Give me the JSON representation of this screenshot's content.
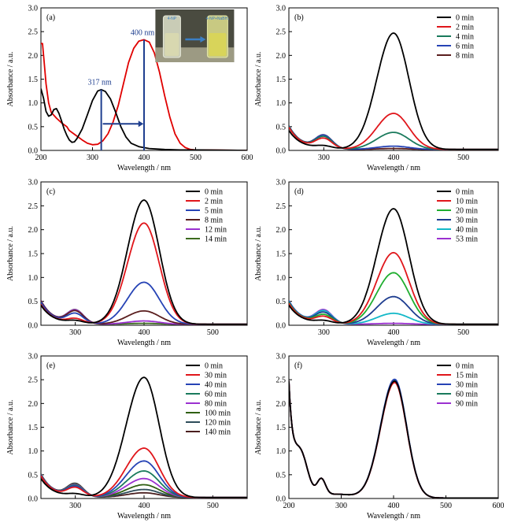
{
  "chart_data": [
    {
      "id": "a",
      "type": "line",
      "panel_label": "(a)",
      "xlabel": "Wavelength / nm",
      "ylabel": "Absorbance / a.u.",
      "xlim": [
        200,
        600
      ],
      "ylim": [
        0,
        3.0
      ],
      "xticks": [
        "200",
        "300",
        "400",
        "500",
        "600"
      ],
      "yticks": [
        "0.0",
        "0.5",
        "1.0",
        "1.5",
        "2.0",
        "2.5",
        "3.0"
      ],
      "series": [
        {
          "color": "#000000",
          "points": [
            [
              200,
              1.3
            ],
            [
              205,
              1.1
            ],
            [
              210,
              0.82
            ],
            [
              215,
              0.72
            ],
            [
              220,
              0.75
            ],
            [
              225,
              0.86
            ],
            [
              230,
              0.88
            ],
            [
              235,
              0.78
            ],
            [
              240,
              0.62
            ],
            [
              245,
              0.45
            ],
            [
              250,
              0.32
            ],
            [
              255,
              0.22
            ],
            [
              260,
              0.17
            ],
            [
              265,
              0.18
            ],
            [
              270,
              0.25
            ],
            [
              280,
              0.45
            ],
            [
              290,
              0.75
            ],
            [
              300,
              1.05
            ],
            [
              310,
              1.25
            ],
            [
              317,
              1.28
            ],
            [
              325,
              1.24
            ],
            [
              335,
              1.08
            ],
            [
              345,
              0.8
            ],
            [
              355,
              0.5
            ],
            [
              365,
              0.28
            ],
            [
              375,
              0.15
            ],
            [
              390,
              0.08
            ],
            [
              410,
              0.04
            ],
            [
              440,
              0.02
            ],
            [
              470,
              0.01
            ],
            [
              500,
              0.01
            ],
            [
              600,
              0.0
            ]
          ]
        },
        {
          "color": "#e00000",
          "points": [
            [
              200,
              2.25
            ],
            [
              203,
              2.25
            ],
            [
              206,
              1.9
            ],
            [
              210,
              1.4
            ],
            [
              215,
              1.0
            ],
            [
              220,
              0.8
            ],
            [
              230,
              0.68
            ],
            [
              240,
              0.58
            ],
            [
              250,
              0.5
            ],
            [
              255,
              0.42
            ],
            [
              260,
              0.38
            ],
            [
              270,
              0.3
            ],
            [
              280,
              0.22
            ],
            [
              290,
              0.15
            ],
            [
              300,
              0.12
            ],
            [
              310,
              0.13
            ],
            [
              320,
              0.2
            ],
            [
              330,
              0.35
            ],
            [
              340,
              0.6
            ],
            [
              350,
              0.95
            ],
            [
              360,
              1.4
            ],
            [
              370,
              1.85
            ],
            [
              380,
              2.15
            ],
            [
              390,
              2.3
            ],
            [
              400,
              2.33
            ],
            [
              410,
              2.28
            ],
            [
              420,
              2.05
            ],
            [
              430,
              1.65
            ],
            [
              440,
              1.15
            ],
            [
              450,
              0.7
            ],
            [
              460,
              0.35
            ],
            [
              470,
              0.15
            ],
            [
              480,
              0.06
            ],
            [
              490,
              0.02
            ],
            [
              500,
              0.01
            ],
            [
              600,
              0.0
            ]
          ]
        }
      ],
      "annotations": [
        {
          "text": "317 nm",
          "x": 317,
          "y": 1.38
        },
        {
          "text": "400 nm",
          "x": 400,
          "y": 2.43
        }
      ],
      "inset_labels": [
        "4-NP",
        "4-NP+NaBH₄"
      ]
    },
    {
      "id": "b",
      "type": "line",
      "panel_label": "(b)",
      "xlabel": "Wavelength / nm",
      "ylabel": "Absorbance / a.u.",
      "xlim": [
        250,
        550
      ],
      "ylim": [
        0,
        3.0
      ],
      "xticks": [
        "300",
        "400",
        "500"
      ],
      "yticks": [
        "0.0",
        "0.5",
        "1.0",
        "1.5",
        "2.0",
        "2.5",
        "3.0"
      ],
      "series": [
        {
          "name": "0 min",
          "color": "#000000",
          "amp": 2.45
        },
        {
          "name": "2 min",
          "color": "#e0161b",
          "amp": 0.76
        },
        {
          "name": "4 min",
          "color": "#1a7a5c",
          "amp": 0.36
        },
        {
          "name": "6 min",
          "color": "#2643b5",
          "amp": 0.07
        },
        {
          "name": "8 min",
          "color": "#5a1e1e",
          "amp": 0.02
        }
      ]
    },
    {
      "id": "c",
      "type": "line",
      "panel_label": "(c)",
      "xlabel": "Wavelength / nm",
      "ylabel": "Absorbance / a.u.",
      "xlim": [
        250,
        550
      ],
      "ylim": [
        0,
        3.0
      ],
      "xticks": [
        "300",
        "400",
        "500"
      ],
      "yticks": [
        "0.0",
        "0.5",
        "1.0",
        "1.5",
        "2.0",
        "2.5",
        "3.0"
      ],
      "series": [
        {
          "name": "0 min",
          "color": "#000000",
          "amp": 2.6
        },
        {
          "name": "2 min",
          "color": "#e0161b",
          "amp": 2.12
        },
        {
          "name": "5 min",
          "color": "#2643b5",
          "amp": 0.88
        },
        {
          "name": "8 min",
          "color": "#5a1e1e",
          "amp": 0.28
        },
        {
          "name": "12 min",
          "color": "#9b30d0",
          "amp": 0.07
        },
        {
          "name": "14 min",
          "color": "#3c6b1e",
          "amp": 0.02
        }
      ]
    },
    {
      "id": "d",
      "type": "line",
      "panel_label": "(d)",
      "xlabel": "Wavelength / nm",
      "ylabel": "Absorbance / a.u.",
      "xlim": [
        250,
        550
      ],
      "ylim": [
        0,
        3.0
      ],
      "xticks": [
        "300",
        "400",
        "500"
      ],
      "yticks": [
        "0.0",
        "0.5",
        "1.0",
        "1.5",
        "2.0",
        "2.5",
        "3.0"
      ],
      "series": [
        {
          "name": "0 min",
          "color": "#000000",
          "amp": 2.42
        },
        {
          "name": "10 min",
          "color": "#e0161b",
          "amp": 1.5
        },
        {
          "name": "20 min",
          "color": "#1fae2f",
          "amp": 1.08
        },
        {
          "name": "30 min",
          "color": "#1d3c8f",
          "amp": 0.58
        },
        {
          "name": "40 min",
          "color": "#13b8c8",
          "amp": 0.23
        },
        {
          "name": "53 min",
          "color": "#9b30d0",
          "amp": 0.02
        }
      ]
    },
    {
      "id": "e",
      "type": "line",
      "panel_label": "(e)",
      "xlabel": "Wavelength / nm",
      "ylabel": "Absorbance / a.u.",
      "xlim": [
        250,
        550
      ],
      "ylim": [
        0,
        3.0
      ],
      "xticks": [
        "300",
        "400",
        "500"
      ],
      "yticks": [
        "0.0",
        "0.5",
        "1.0",
        "1.5",
        "2.0",
        "2.5",
        "3.0"
      ],
      "series": [
        {
          "name": "0 min",
          "color": "#000000",
          "amp": 2.53
        },
        {
          "name": "30 min",
          "color": "#e0161b",
          "amp": 1.04
        },
        {
          "name": "40 min",
          "color": "#2643b5",
          "amp": 0.77
        },
        {
          "name": "60 min",
          "color": "#1a7a5c",
          "amp": 0.56
        },
        {
          "name": "80 min",
          "color": "#9b30d0",
          "amp": 0.4
        },
        {
          "name": "100 min",
          "color": "#2f5f12",
          "amp": 0.27
        },
        {
          "name": "120 min",
          "color": "#2e4d5a",
          "amp": 0.17
        },
        {
          "name": "140 min",
          "color": "#4a1f1f",
          "amp": 0.1
        }
      ]
    },
    {
      "id": "f",
      "type": "line",
      "panel_label": "(f)",
      "xlabel": "Wavelength / nm",
      "ylabel": "Absorbance / a.u.",
      "xlim": [
        200,
        600
      ],
      "ylim": [
        0,
        3.0
      ],
      "xticks": [
        "200",
        "300",
        "400",
        "500",
        "600"
      ],
      "yticks": [
        "0.0",
        "0.5",
        "1.0",
        "1.5",
        "2.0",
        "2.5",
        "3.0"
      ],
      "series": [
        {
          "name": "0 min",
          "color": "#000000",
          "amp": 2.46
        },
        {
          "name": "15 min",
          "color": "#e0161b",
          "amp": 2.43
        },
        {
          "name": "30 min",
          "color": "#2643b5",
          "amp": 2.5
        },
        {
          "name": "60 min",
          "color": "#1a7a5c",
          "amp": 2.48
        },
        {
          "name": "90 min",
          "color": "#9b30d0",
          "amp": 2.44
        }
      ]
    }
  ]
}
